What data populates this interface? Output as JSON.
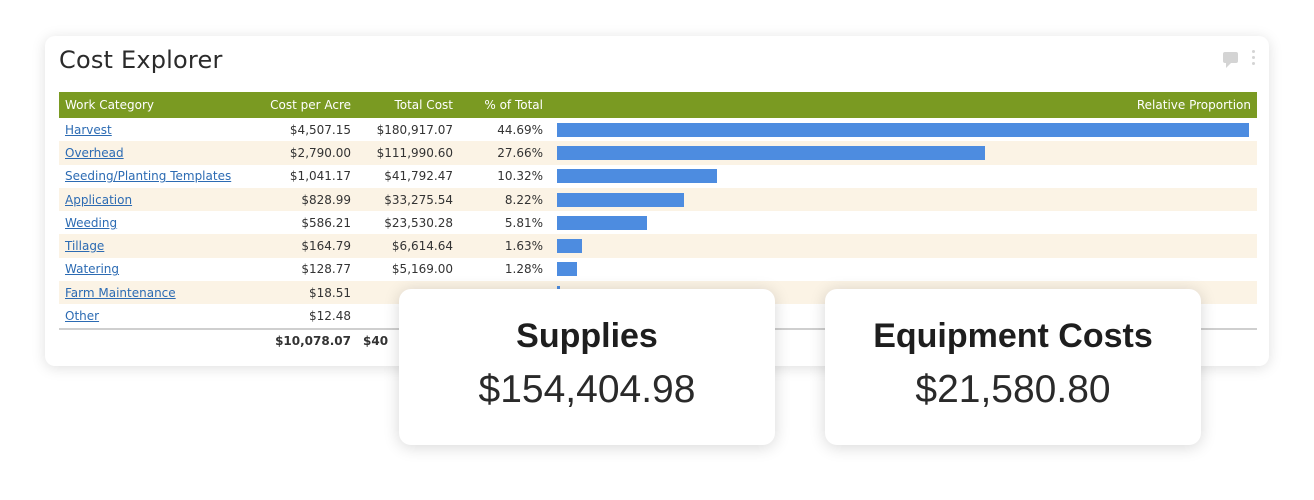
{
  "card": {
    "title": "Cost Explorer",
    "icons": [
      "comment-icon",
      "kebab-menu-icon"
    ]
  },
  "table": {
    "columns": [
      "Work Category",
      "Cost per Acre",
      "Total Cost",
      "% of Total",
      "Relative Proportion"
    ],
    "rows": [
      {
        "category": "Harvest",
        "cost_per_acre": "$4,507.15",
        "total_cost": "$180,917.07",
        "pct": "44.69%",
        "proportion": 44.69
      },
      {
        "category": "Overhead",
        "cost_per_acre": "$2,790.00",
        "total_cost": "$111,990.60",
        "pct": "27.66%",
        "proportion": 27.66
      },
      {
        "category": "Seeding/Planting Templates",
        "cost_per_acre": "$1,041.17",
        "total_cost": "$41,792.47",
        "pct": "10.32%",
        "proportion": 10.32
      },
      {
        "category": "Application",
        "cost_per_acre": "$828.99",
        "total_cost": "$33,275.54",
        "pct": "8.22%",
        "proportion": 8.22
      },
      {
        "category": "Weeding",
        "cost_per_acre": "$586.21",
        "total_cost": "$23,530.28",
        "pct": "5.81%",
        "proportion": 5.81
      },
      {
        "category": "Tillage",
        "cost_per_acre": "$164.79",
        "total_cost": "$6,614.64",
        "pct": "1.63%",
        "proportion": 1.63
      },
      {
        "category": "Watering",
        "cost_per_acre": "$128.77",
        "total_cost": "$5,169.00",
        "pct": "1.28%",
        "proportion": 1.28
      },
      {
        "category": "Farm Maintenance",
        "cost_per_acre": "$18.51",
        "total_cost": "",
        "pct": "",
        "proportion": 0.2
      },
      {
        "category": "Other",
        "cost_per_acre": "$12.48",
        "total_cost": "",
        "pct": "",
        "proportion": 0
      }
    ],
    "footer": {
      "cost_per_acre": "$10,078.07",
      "total_cost": "$40"
    }
  },
  "stats": [
    {
      "label": "Supplies",
      "value": "$154,404.98"
    },
    {
      "label": "Equipment Costs",
      "value": "$21,580.80"
    }
  ],
  "colors": {
    "header": "#7a9a22",
    "bar": "#4d8ce0",
    "row_alt": "#fbf3e5",
    "link": "#2c6bb3"
  }
}
